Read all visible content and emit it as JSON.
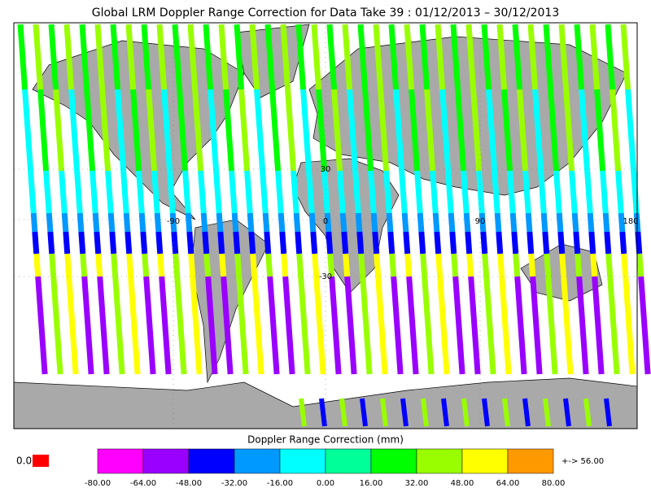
{
  "title": "Global LRM Doppler Range Correction for Data Take 39 : 01/12/2013 – 30/12/2013",
  "map": {
    "lat_labels": [
      "30",
      "-30"
    ],
    "lon_labels": [
      "-90",
      "0",
      "90",
      "180"
    ]
  },
  "legend": {
    "label": "Doppler Range Correction (mm)",
    "ticks": [
      "-80.00",
      "-64.00",
      "-48.00",
      "-32.00",
      "-16.00",
      "0.00",
      "16.00",
      "32.00",
      "48.00",
      "64.00",
      "80.00"
    ],
    "colors": [
      "#ff00ff",
      "#9900ff",
      "#0000ff",
      "#0099ff",
      "#00ffff",
      "#00ff99",
      "#00ff00",
      "#99ff00",
      "#ffff00",
      "#ff9900"
    ],
    "under": {
      "label": "0.0",
      "color": "#ff0000"
    },
    "over": {
      "label": "+-> 56.00",
      "color": "#ff9900"
    }
  }
}
